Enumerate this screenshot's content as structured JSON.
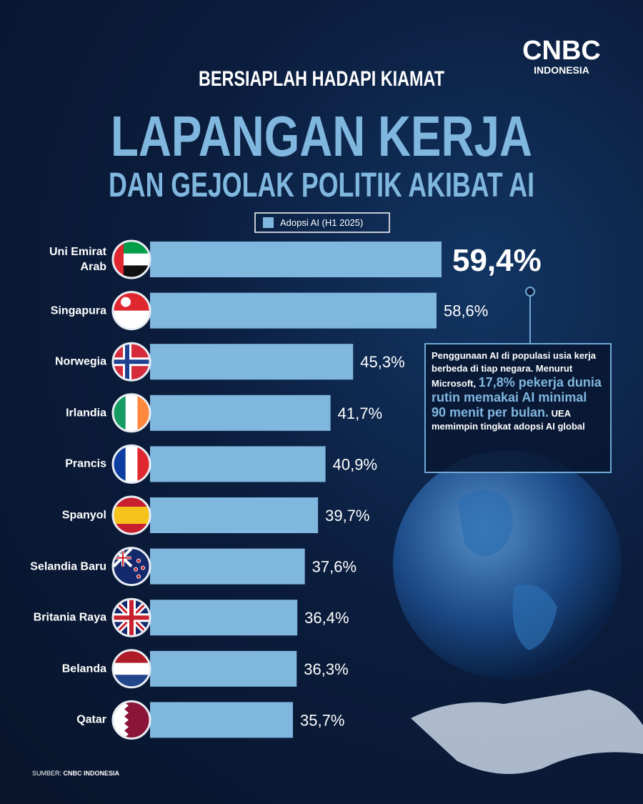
{
  "chart_data": {
    "type": "bar",
    "orientation": "horizontal",
    "logo": [
      "CNBC",
      "INDONESIA"
    ],
    "title": [
      "BERSIAPLAH HADAPI KIAMAT",
      "LAPANGAN KERJA",
      "DAN GEJOLAK POLITIK AKIBAT AI"
    ],
    "categories": [
      "Uni Emirat Arab",
      "Singapura",
      "Norwegia",
      "Irlandia",
      "Prancis",
      "Spanyol",
      "Selandia Baru",
      "Britania Raya",
      "Belanda",
      "Qatar"
    ],
    "series": [
      {
        "name": "Adopsi AI (H1 2025)",
        "color": "#80b7df",
        "values": [
          59.4,
          58.6,
          45.3,
          41.7,
          40.9,
          39.7,
          37.6,
          36.4,
          36.3,
          35.7
        ],
        "value_labels": [
          "59,4%",
          "58,6%",
          "45,3%",
          "41,7%",
          "40,9%",
          "39,7%",
          "37,6%",
          "36,4%",
          "36,3%",
          "35,7%"
        ]
      }
    ],
    "annotations": [
      "Penggunaan AI di populasi usia kerja berbeda di tiap negara. Menurut Microsoft,",
      "17,8% pekerja dunia rutin memakai AI minimal 90 menit per bulan.",
      "UEA memimpin tingkat adopsi AI global"
    ],
    "source": [
      "SUMBER:",
      "CNBC INDONESIA"
    ]
  }
}
